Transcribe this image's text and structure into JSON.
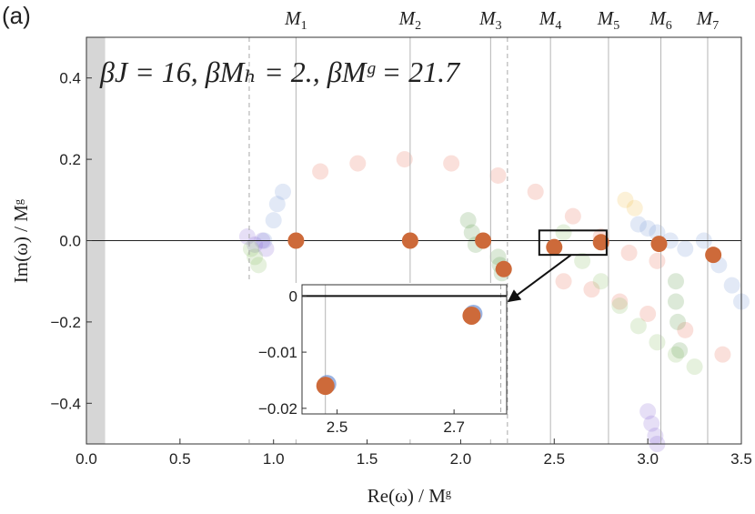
{
  "panel_label": "(a)",
  "annotation": "βJ = 16,  βMₕ = 2.,  βMᵍ = 21.7",
  "chart_data": {
    "type": "scatter",
    "xlabel": "Re(ω) / Mᵍ",
    "ylabel": "Im(ω) / Mᵍ",
    "xlim": [
      0.0,
      3.5
    ],
    "ylim": [
      -0.5,
      0.5
    ],
    "x_ticks": [
      0.0,
      0.5,
      1.0,
      1.5,
      2.0,
      2.5,
      3.0,
      3.5
    ],
    "x_tick_labels": [
      "0.0",
      "0.5",
      "1.0",
      "1.5",
      "2.0",
      "2.5",
      "3.0",
      "3.5"
    ],
    "y_ticks": [
      -0.4,
      -0.2,
      0.0,
      0.2,
      0.4
    ],
    "y_tick_labels": [
      "-0.4",
      "-0.2",
      "0.0",
      "0.2",
      "0.4"
    ],
    "shaded_region_x": [
      0.0,
      0.1
    ],
    "dashed_lines_x": [
      0.87,
      2.25
    ],
    "mass_lines": [
      {
        "label": "M",
        "sub": "1",
        "x": 1.12
      },
      {
        "label": "M",
        "sub": "2",
        "x": 1.73
      },
      {
        "label": "M",
        "sub": "3",
        "x": 2.16
      },
      {
        "label": "M",
        "sub": "4",
        "x": 2.48
      },
      {
        "label": "M",
        "sub": "5",
        "x": 2.79
      },
      {
        "label": "M",
        "sub": "6",
        "x": 3.07
      },
      {
        "label": "M",
        "sub": "7",
        "x": 3.32
      }
    ],
    "highlighted_poles": {
      "color": "#cd6a3a",
      "x": [
        1.12,
        1.73,
        2.12,
        2.23,
        2.5,
        2.75,
        3.06,
        3.35
      ],
      "y": [
        0.0,
        0.0,
        0.0,
        -0.07,
        -0.016,
        -0.004,
        -0.008,
        -0.035
      ]
    },
    "faint_trajectories": [
      {
        "color": "#e8735a",
        "x": [
          1.25,
          1.45,
          1.7,
          1.95,
          2.2,
          2.4,
          2.6,
          2.75,
          2.9,
          3.05
        ],
        "y": [
          0.17,
          0.19,
          0.2,
          0.19,
          0.16,
          0.12,
          0.06,
          0.01,
          -0.03,
          -0.05
        ]
      },
      {
        "color": "#e8735a",
        "x": [
          2.55,
          2.7,
          2.85,
          3.0,
          3.2,
          3.4
        ],
        "y": [
          -0.1,
          -0.12,
          -0.15,
          -0.18,
          -0.22,
          -0.28
        ]
      },
      {
        "color": "#7c9bd6",
        "x": [
          0.95,
          1.0,
          1.02,
          1.05
        ],
        "y": [
          0.0,
          0.05,
          0.09,
          0.12
        ]
      },
      {
        "color": "#8fbf6a",
        "x": [
          2.55,
          2.65,
          2.75,
          2.85,
          2.95,
          3.05,
          3.15,
          3.25
        ],
        "y": [
          0.02,
          -0.05,
          -0.1,
          -0.16,
          -0.21,
          -0.25,
          -0.28,
          -0.31
        ]
      },
      {
        "color": "#5f9b4f",
        "x": [
          2.04,
          2.06,
          2.08
        ],
        "y": [
          0.05,
          0.02,
          -0.01
        ]
      },
      {
        "color": "#5f9b4f",
        "x": [
          2.2,
          2.21,
          2.22
        ],
        "y": [
          -0.04,
          -0.06,
          -0.08
        ]
      },
      {
        "color": "#5f9b4f",
        "x": [
          3.15,
          3.15,
          3.16,
          3.17
        ],
        "y": [
          -0.1,
          -0.15,
          -0.2,
          -0.27
        ]
      },
      {
        "color": "#7c9bd6",
        "x": [
          3.3,
          3.38,
          3.45,
          3.5
        ],
        "y": [
          0.0,
          -0.06,
          -0.11,
          -0.15
        ]
      },
      {
        "color": "#8f6ed6",
        "x": [
          3.0,
          3.02,
          3.04,
          3.05
        ],
        "y": [
          -0.42,
          -0.45,
          -0.48,
          -0.5
        ]
      },
      {
        "color": "#f2c14e",
        "x": [
          2.88,
          2.93
        ],
        "y": [
          0.1,
          0.08
        ]
      },
      {
        "color": "#8f6ed6",
        "x": [
          0.86,
          0.9,
          0.94,
          0.96
        ],
        "y": [
          0.01,
          -0.01,
          0.0,
          -0.02
        ]
      },
      {
        "color": "#8fbf6a",
        "x": [
          0.88,
          0.9,
          0.92
        ],
        "y": [
          -0.02,
          -0.04,
          -0.06
        ]
      },
      {
        "color": "#7c9bd6",
        "x": [
          2.95,
          3.0,
          3.05,
          3.12,
          3.2
        ],
        "y": [
          0.04,
          0.03,
          0.02,
          0.0,
          -0.02
        ]
      }
    ],
    "inset": {
      "x_range_main": [
        2.42,
        2.78
      ],
      "y_range_main": [
        -0.035,
        0.025
      ],
      "xlim": [
        2.44,
        2.79
      ],
      "ylim": [
        -0.021,
        0.002
      ],
      "x_ticks": [
        2.5,
        2.7
      ],
      "x_tick_labels": [
        "2.5",
        "2.7"
      ],
      "y_ticks": [
        0.0,
        -0.01,
        -0.02
      ],
      "y_tick_labels": [
        "0",
        "-0.01",
        "-0.02"
      ],
      "mass_lines_x": [
        2.48
      ],
      "dashed_line_x": 2.78,
      "points": {
        "x": [
          2.48,
          2.73
        ],
        "y": [
          -0.016,
          -0.0035
        ]
      },
      "point_color": "#cd6a3a"
    }
  }
}
